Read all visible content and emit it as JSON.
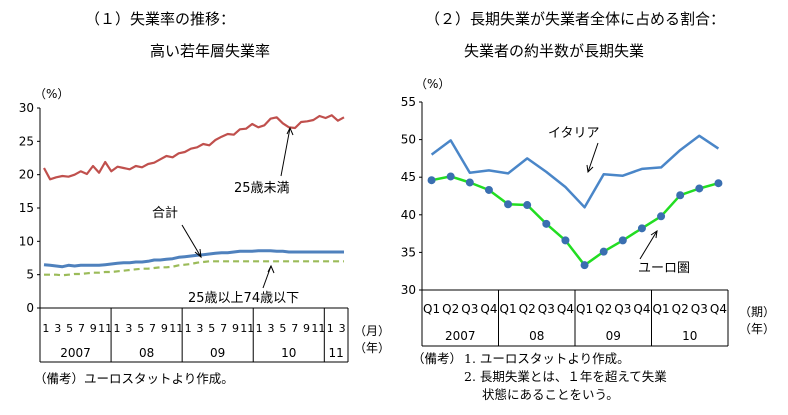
{
  "chart_data": [
    {
      "type": "line",
      "title": "（１）失業率の推移：",
      "subtitle": "高い若年層失業率",
      "ylabel": "（%）",
      "xunit": "（月）",
      "yunit": "（年）",
      "ylim": [
        0,
        30
      ],
      "yticks": [
        "0",
        "5",
        "10",
        "15",
        "20",
        "25",
        "30"
      ],
      "month_labels": [
        "1",
        "3",
        "5",
        "7",
        "9",
        "11",
        "1",
        "3",
        "5",
        "7",
        "9",
        "11",
        "1",
        "3",
        "5",
        "7",
        "9",
        "11",
        "1",
        "3",
        "5",
        "7",
        "9",
        "11",
        "1",
        "3"
      ],
      "years": [
        "2007",
        "08",
        "09",
        "10",
        "11"
      ],
      "x_count": 50,
      "series": [
        {
          "name": "25歳未満",
          "color": "#c0504d",
          "dash": "",
          "values": [
            21.0,
            19.3,
            19.6,
            19.8,
            19.7,
            20.0,
            20.5,
            20.1,
            21.3,
            20.3,
            21.9,
            20.5,
            21.2,
            21.0,
            20.8,
            21.3,
            21.1,
            21.6,
            21.8,
            22.3,
            22.8,
            22.6,
            23.2,
            23.4,
            23.9,
            24.1,
            24.6,
            24.4,
            25.2,
            25.7,
            26.1,
            26.0,
            26.8,
            26.9,
            27.6,
            27.1,
            27.4,
            28.4,
            28.6,
            27.7,
            27.1,
            27.0,
            27.9,
            28.0,
            28.2,
            28.8,
            28.5,
            28.9,
            28.1,
            28.6
          ]
        },
        {
          "name": "合計",
          "color": "#4f81bd",
          "dash": "",
          "values": [
            6.5,
            6.4,
            6.3,
            6.2,
            6.4,
            6.3,
            6.4,
            6.4,
            6.4,
            6.4,
            6.5,
            6.6,
            6.7,
            6.8,
            6.8,
            6.9,
            6.9,
            7.0,
            7.2,
            7.2,
            7.3,
            7.4,
            7.6,
            7.7,
            7.8,
            7.9,
            8.0,
            8.1,
            8.2,
            8.3,
            8.3,
            8.4,
            8.5,
            8.5,
            8.5,
            8.6,
            8.6,
            8.6,
            8.5,
            8.5,
            8.4,
            8.4,
            8.4,
            8.4,
            8.4,
            8.4,
            8.4,
            8.4,
            8.4,
            8.4
          ]
        },
        {
          "name": "25歳以上74歳以下",
          "color": "#9bbb59",
          "dash": "6,4",
          "values": [
            5.0,
            5.0,
            5.0,
            4.9,
            5.0,
            5.1,
            5.1,
            5.2,
            5.3,
            5.3,
            5.4,
            5.4,
            5.5,
            5.6,
            5.7,
            5.8,
            5.9,
            5.9,
            6.0,
            6.1,
            6.1,
            6.2,
            6.4,
            6.5,
            6.6,
            6.8,
            6.9,
            7.0,
            7.0,
            7.0,
            7.0,
            7.0,
            7.0,
            7.0,
            7.0,
            7.0,
            7.0,
            7.0,
            7.0,
            7.0,
            7.0,
            7.0,
            7.0,
            7.0,
            7.0,
            7.0,
            7.0,
            7.0,
            7.0,
            7.0
          ]
        }
      ],
      "note": "（備考）ユーロスタットより作成。"
    },
    {
      "type": "line",
      "title": "（２）長期失業が失業者全体に占める割合：",
      "subtitle": "失業者の約半数が長期失業",
      "ylabel": "（%）",
      "xunit": "（期）",
      "yunit": "（年）",
      "ylim": [
        30,
        55
      ],
      "yticks": [
        "30",
        "35",
        "40",
        "45",
        "50",
        "55"
      ],
      "quarter_labels": [
        "Q1",
        "Q2",
        "Q3",
        "Q4",
        "Q1",
        "Q2",
        "Q3",
        "Q4",
        "Q1",
        "Q2",
        "Q3",
        "Q4",
        "Q1",
        "Q2",
        "Q3",
        "Q4"
      ],
      "years": [
        "2007",
        "08",
        "09",
        "10"
      ],
      "series": [
        {
          "name": "イタリア",
          "color": "#4a86c8",
          "marker": false,
          "values": [
            48.0,
            49.9,
            45.6,
            45.9,
            45.5,
            47.5,
            45.7,
            43.7,
            41.0,
            45.4,
            45.2,
            46.1,
            46.3,
            48.6,
            50.5,
            48.8
          ]
        },
        {
          "name": "ユーロ圏",
          "color": "#22dd22",
          "marker": true,
          "values": [
            44.6,
            45.1,
            44.3,
            43.3,
            41.4,
            41.3,
            38.8,
            36.6,
            33.3,
            35.1,
            36.6,
            38.2,
            39.8,
            42.6,
            43.5,
            44.2
          ]
        }
      ],
      "notes": [
        "（備考）",
        "1. ユーロスタットより作成。",
        "2. 長期失業とは、１年を超えて失業",
        "状態にあることをいう。"
      ]
    }
  ]
}
